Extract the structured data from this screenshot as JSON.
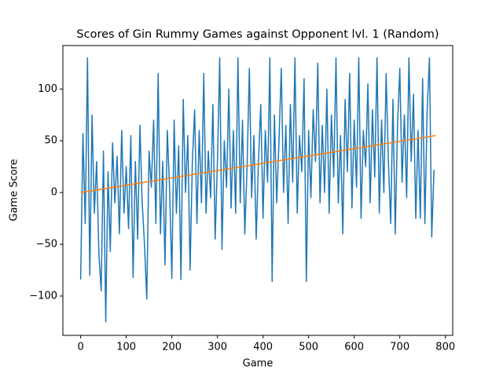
{
  "chart_data": {
    "type": "line",
    "title": "Scores of Gin Rummy Games against Opponent lvl. 1 (Random)",
    "x_label": "Game",
    "y_label": "Game Score",
    "xlim": [
      -39,
      816
    ],
    "ylim": [
      -138,
      142
    ],
    "xticks": [
      0,
      100,
      200,
      300,
      400,
      500,
      600,
      700,
      800
    ],
    "yticks": [
      {
        "value": -100,
        "label": "−100"
      },
      {
        "value": -50,
        "label": "−50"
      },
      0,
      50,
      100
    ],
    "series": [
      {
        "color": "#1f77b4",
        "x": [
          0,
          5,
          10,
          15,
          20,
          25,
          30,
          35,
          40,
          45,
          50,
          55,
          60,
          65,
          70,
          75,
          80,
          85,
          90,
          95,
          100,
          105,
          110,
          115,
          120,
          125,
          130,
          135,
          140,
          145,
          150,
          155,
          160,
          165,
          170,
          175,
          180,
          185,
          190,
          195,
          200,
          205,
          210,
          215,
          220,
          225,
          230,
          235,
          240,
          245,
          250,
          255,
          260,
          265,
          270,
          275,
          280,
          285,
          290,
          295,
          300,
          305,
          310,
          315,
          320,
          325,
          330,
          335,
          340,
          345,
          350,
          355,
          360,
          365,
          370,
          375,
          380,
          385,
          390,
          395,
          400,
          405,
          410,
          415,
          420,
          425,
          430,
          435,
          440,
          445,
          450,
          455,
          460,
          465,
          470,
          475,
          480,
          485,
          490,
          495,
          500,
          505,
          510,
          515,
          520,
          525,
          530,
          535,
          540,
          545,
          550,
          555,
          560,
          565,
          570,
          575,
          580,
          585,
          590,
          595,
          600,
          605,
          610,
          615,
          620,
          625,
          630,
          635,
          640,
          645,
          650,
          655,
          660,
          665,
          670,
          675,
          680,
          685,
          690,
          695,
          700,
          705,
          710,
          715,
          720,
          725,
          730,
          735,
          740,
          745,
          750,
          755,
          760,
          765,
          770,
          775
        ],
        "values": [
          -84,
          57,
          -30,
          130,
          -80,
          75,
          -20,
          30,
          -60,
          -95,
          40,
          -125,
          20,
          -57,
          48,
          -10,
          35,
          -40,
          60,
          -20,
          25,
          -35,
          55,
          -82,
          30,
          -45,
          65,
          -10,
          -50,
          -103,
          40,
          5,
          70,
          -30,
          115,
          -40,
          30,
          -70,
          60,
          5,
          -83,
          70,
          -20,
          45,
          -84,
          90,
          0,
          55,
          -75,
          30,
          80,
          -30,
          60,
          -10,
          115,
          -20,
          40,
          -5,
          85,
          -45,
          30,
          130,
          -55,
          50,
          5,
          100,
          -15,
          60,
          -20,
          130,
          -10,
          70,
          -40,
          25,
          120,
          -5,
          55,
          -45,
          30,
          85,
          -25,
          60,
          10,
          130,
          -86,
          75,
          -10,
          50,
          120,
          0,
          65,
          -30,
          85,
          10,
          130,
          -20,
          55,
          20,
          110,
          -86,
          60,
          -5,
          80,
          30,
          125,
          -10,
          65,
          0,
          100,
          -20,
          75,
          15,
          130,
          -10,
          55,
          -40,
          90,
          20,
          115,
          -15,
          70,
          5,
          130,
          -25,
          60,
          25,
          105,
          -10,
          80,
          15,
          130,
          -20,
          70,
          0,
          115,
          30,
          -30,
          90,
          -40,
          65,
          120,
          10,
          75,
          -5,
          130,
          30,
          95,
          -25,
          60,
          -25,
          110,
          -30,
          80,
          130,
          -43,
          22
        ]
      },
      {
        "color": "#ff7f0e",
        "x": [
          0,
          778
        ],
        "values": [
          0,
          55
        ]
      }
    ]
  }
}
